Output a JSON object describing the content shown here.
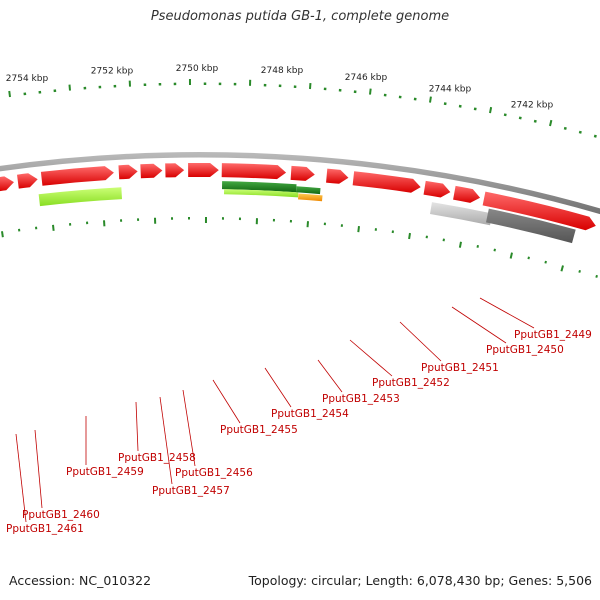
{
  "title": "Pseudomonas putida GB-1, complete genome",
  "footer": {
    "accession": "Accession: NC_010322",
    "stats": "Topology: circular; Length: 6,078,430 bp; Genes: 5,506"
  },
  "ruler_labels": [
    "2742 kbp",
    "2744 kbp",
    "2746 kbp",
    "2748 kbp",
    "2750 kbp",
    "2752 kbp",
    "2754 kbp"
  ],
  "gene_labels": [
    "PputGB1_2449",
    "PputGB1_2450",
    "PputGB1_2451",
    "PputGB1_2452",
    "PputGB1_2453",
    "PputGB1_2454",
    "PputGB1_2455",
    "PputGB1_2456",
    "PputGB1_2457",
    "PputGB1_2458",
    "PputGB1_2459",
    "PputGB1_2460",
    "PputGB1_2461"
  ],
  "colors": {
    "gene": "#ee1111",
    "backbone": "#888888",
    "tick": "#2a8a2a",
    "label": "#c00000",
    "green_dark": "#228822",
    "green_light": "#a8ee44",
    "orange": "#ff9900",
    "gray_dark": "#666666",
    "gray_light": "#c8c8c8"
  }
}
